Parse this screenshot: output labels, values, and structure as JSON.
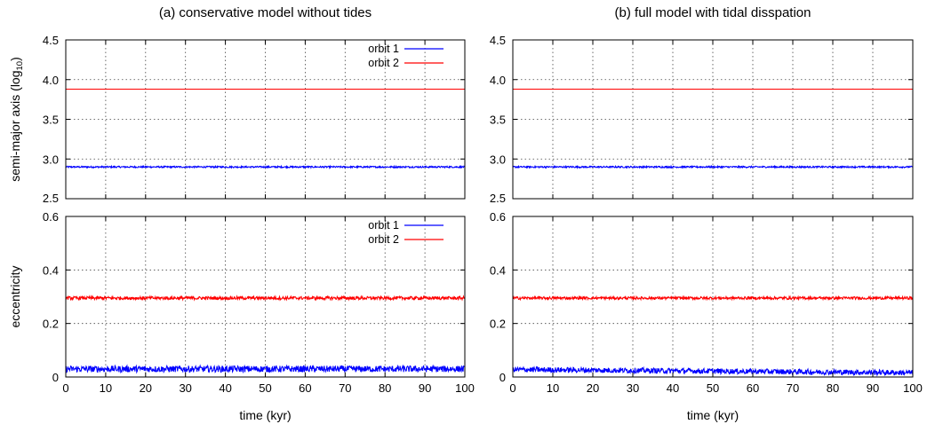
{
  "chart_data": [
    {
      "type": "line",
      "panel": "top-left",
      "title": "(a) conservative model without tides",
      "ylabel": "semi-major axis (log10)",
      "xlabel": "",
      "xlim": [
        0,
        100
      ],
      "ylim": [
        2.5,
        4.5
      ],
      "xticks": [
        0,
        10,
        20,
        30,
        40,
        50,
        60,
        70,
        80,
        90,
        100
      ],
      "yticks": [
        "2.5",
        "3.0",
        "3.5",
        "4.0",
        "4.5"
      ],
      "grid": true,
      "legend_position": "top-right",
      "series": [
        {
          "name": "orbit 1",
          "color": "#0000ff",
          "x": [
            0,
            100
          ],
          "y": [
            2.9,
            2.9
          ],
          "noise": 0.01
        },
        {
          "name": "orbit 2",
          "color": "#ff0000",
          "x": [
            0,
            100
          ],
          "y": [
            3.88,
            3.88
          ],
          "noise": 0
        }
      ]
    },
    {
      "type": "line",
      "panel": "top-right",
      "title": "(b) full model with tidal disspation",
      "ylabel": "",
      "xlabel": "",
      "xlim": [
        0,
        100
      ],
      "ylim": [
        2.5,
        4.5
      ],
      "xticks": [
        0,
        10,
        20,
        30,
        40,
        50,
        60,
        70,
        80,
        90,
        100
      ],
      "yticks": [
        "2.5",
        "3.0",
        "3.5",
        "4.0",
        "4.5"
      ],
      "grid": true,
      "series": [
        {
          "color": "#0000ff",
          "x": [
            0,
            100
          ],
          "y": [
            2.9,
            2.9
          ],
          "noise": 0.01
        },
        {
          "color": "#ff0000",
          "x": [
            0,
            100
          ],
          "y": [
            3.88,
            3.88
          ],
          "noise": 0
        }
      ]
    },
    {
      "type": "line",
      "panel": "bottom-left",
      "title": "",
      "ylabel": "eccentricity",
      "xlabel": "time (kyr)",
      "xlim": [
        0,
        100
      ],
      "ylim": [
        0,
        0.6
      ],
      "xticks": [
        0,
        10,
        20,
        30,
        40,
        50,
        60,
        70,
        80,
        90,
        100
      ],
      "yticks": [
        "0",
        "0.2",
        "0.4",
        "0.6"
      ],
      "grid": true,
      "legend_position": "top-right",
      "series": [
        {
          "name": "orbit 1",
          "color": "#0000ff",
          "x": [
            0,
            100
          ],
          "y": [
            0.03,
            0.03
          ],
          "noise": 0.012
        },
        {
          "name": "orbit 2",
          "color": "#ff0000",
          "x": [
            0,
            100
          ],
          "y": [
            0.295,
            0.295
          ],
          "noise": 0.006
        }
      ]
    },
    {
      "type": "line",
      "panel": "bottom-right",
      "title": "",
      "ylabel": "",
      "xlabel": "time (kyr)",
      "xlim": [
        0,
        100
      ],
      "ylim": [
        0,
        0.6
      ],
      "xticks": [
        0,
        10,
        20,
        30,
        40,
        50,
        60,
        70,
        80,
        90,
        100
      ],
      "yticks": [
        "0",
        "0.2",
        "0.4",
        "0.6"
      ],
      "grid": true,
      "series": [
        {
          "color": "#0000ff",
          "x": [
            0,
            100
          ],
          "y": [
            0.028,
            0.016
          ],
          "noise": 0.01
        },
        {
          "color": "#ff0000",
          "x": [
            0,
            100
          ],
          "y": [
            0.295,
            0.295
          ],
          "noise": 0.005
        }
      ]
    }
  ]
}
